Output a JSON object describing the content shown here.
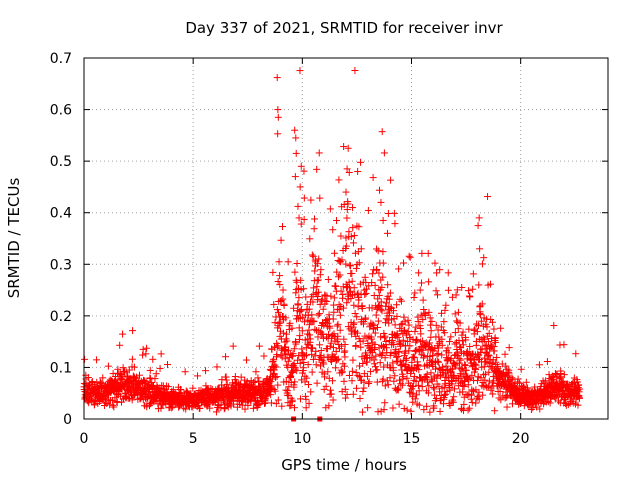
{
  "chart_data": {
    "type": "scatter",
    "title": "Day 337 of 2021, SRMTID for receiver invr",
    "xlabel": "GPS time / hours",
    "ylabel": "SRMTID / TECUs",
    "xlim": [
      0,
      24
    ],
    "ylim": [
      0,
      0.7
    ],
    "xticks": [
      "0",
      "5",
      "10",
      "15",
      "20"
    ],
    "xtick_values": [
      0,
      5,
      10,
      15,
      20
    ],
    "yticks": [
      "0",
      "0.1",
      "0.2",
      "0.3",
      "0.4",
      "0.5",
      "0.6",
      "0.7"
    ],
    "ytick_values": [
      0,
      0.1,
      0.2,
      0.3,
      0.4,
      0.5,
      0.6,
      0.7
    ],
    "grid": true,
    "marker": "+",
    "color": "#ff0000",
    "series": [
      {
        "name": "SRMTID",
        "profile": [
          [
            0.0,
            0.055
          ],
          [
            0.5,
            0.05
          ],
          [
            1.0,
            0.055
          ],
          [
            1.5,
            0.06
          ],
          [
            2.0,
            0.065
          ],
          [
            2.5,
            0.06
          ],
          [
            3.0,
            0.055
          ],
          [
            3.5,
            0.045
          ],
          [
            4.0,
            0.04
          ],
          [
            4.5,
            0.038
          ],
          [
            5.0,
            0.038
          ],
          [
            5.5,
            0.04
          ],
          [
            6.0,
            0.042
          ],
          [
            6.5,
            0.045
          ],
          [
            7.0,
            0.05
          ],
          [
            7.5,
            0.05
          ],
          [
            8.0,
            0.05
          ],
          [
            8.5,
            0.06
          ],
          [
            8.8,
            0.14
          ],
          [
            9.0,
            0.18
          ],
          [
            9.3,
            0.1
          ],
          [
            9.6,
            0.12
          ],
          [
            9.8,
            0.22
          ],
          [
            10.0,
            0.18
          ],
          [
            10.3,
            0.14
          ],
          [
            10.6,
            0.2
          ],
          [
            11.0,
            0.17
          ],
          [
            11.4,
            0.12
          ],
          [
            11.8,
            0.2
          ],
          [
            12.0,
            0.22
          ],
          [
            12.3,
            0.2
          ],
          [
            12.7,
            0.17
          ],
          [
            13.0,
            0.13
          ],
          [
            13.3,
            0.16
          ],
          [
            13.6,
            0.2
          ],
          [
            14.0,
            0.16
          ],
          [
            14.3,
            0.13
          ],
          [
            14.7,
            0.12
          ],
          [
            15.0,
            0.1
          ],
          [
            15.3,
            0.11
          ],
          [
            15.7,
            0.12
          ],
          [
            16.0,
            0.1
          ],
          [
            16.5,
            0.095
          ],
          [
            17.0,
            0.1
          ],
          [
            17.5,
            0.09
          ],
          [
            18.0,
            0.1
          ],
          [
            18.3,
            0.14
          ],
          [
            18.6,
            0.12
          ],
          [
            19.0,
            0.075
          ],
          [
            19.5,
            0.06
          ],
          [
            20.0,
            0.045
          ],
          [
            20.5,
            0.04
          ],
          [
            21.0,
            0.05
          ],
          [
            21.5,
            0.06
          ],
          [
            22.0,
            0.055
          ],
          [
            22.7,
            0.05
          ]
        ],
        "samples_per_hour": 120,
        "seed": 337,
        "peaks": [
          {
            "x": 8.85,
            "y": 0.662
          },
          {
            "x": 8.88,
            "y": 0.6
          },
          {
            "x": 8.9,
            "y": 0.585
          },
          {
            "x": 8.87,
            "y": 0.553
          },
          {
            "x": 9.65,
            "y": 0.56
          },
          {
            "x": 9.7,
            "y": 0.545
          },
          {
            "x": 9.72,
            "y": 0.515
          },
          {
            "x": 9.68,
            "y": 0.47
          },
          {
            "x": 9.95,
            "y": 0.49
          },
          {
            "x": 9.9,
            "y": 0.45
          },
          {
            "x": 12.1,
            "y": 0.525
          },
          {
            "x": 12.05,
            "y": 0.485
          },
          {
            "x": 12.0,
            "y": 0.44
          },
          {
            "x": 12.3,
            "y": 0.41
          },
          {
            "x": 13.6,
            "y": 0.42
          },
          {
            "x": 13.7,
            "y": 0.385
          },
          {
            "x": 18.1,
            "y": 0.39
          },
          {
            "x": 18.05,
            "y": 0.375
          },
          {
            "x": 18.12,
            "y": 0.33
          },
          {
            "x": 18.08,
            "y": 0.26
          },
          {
            "x": 13.9,
            "y": 0.36
          },
          {
            "x": 15.4,
            "y": 0.25
          },
          {
            "x": 17.3,
            "y": 0.255
          },
          {
            "x": 12.7,
            "y": 0.33
          }
        ]
      }
    ],
    "axis_markers": [
      9.6,
      10.8
    ]
  }
}
